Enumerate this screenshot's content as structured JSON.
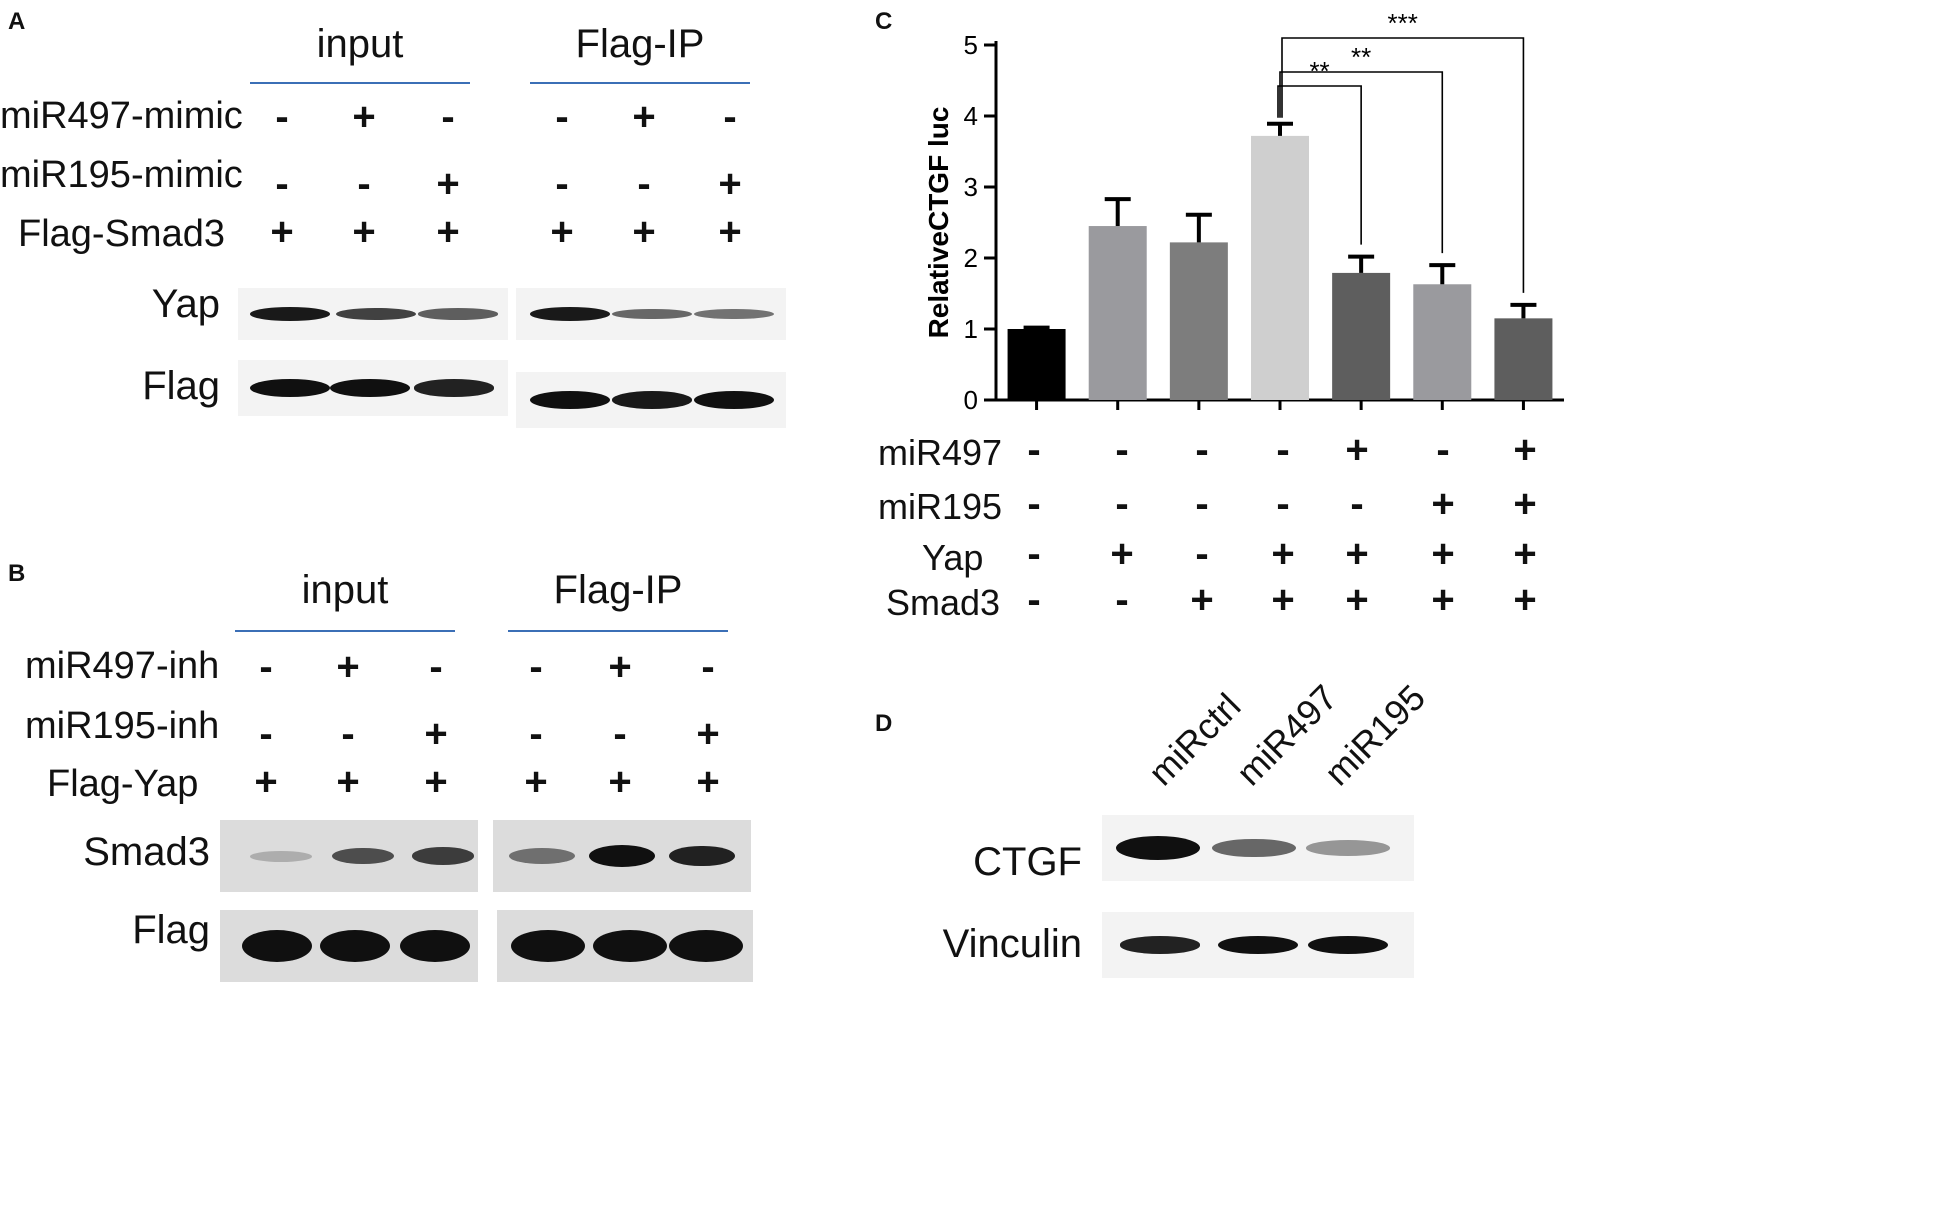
{
  "panels": {
    "A": {
      "letter": "A",
      "group_titles": [
        "input",
        "Flag-IP"
      ],
      "rows": [
        {
          "label": "miR497-mimic",
          "values": [
            "-",
            "+",
            "-",
            "-",
            "+",
            "-"
          ]
        },
        {
          "label": "miR195-mimic",
          "values": [
            "-",
            "-",
            "+",
            "-",
            "-",
            "+"
          ]
        },
        {
          "label": "Flag-Smad3",
          "values": [
            "+",
            "+",
            "+",
            "+",
            "+",
            "+"
          ]
        }
      ],
      "blots": [
        {
          "label": "Yap",
          "input_intensity": [
            0.95,
            0.75,
            0.6
          ],
          "ip_intensity": [
            0.95,
            0.55,
            0.5
          ]
        },
        {
          "label": "Flag",
          "input_intensity": [
            1.0,
            1.0,
            0.9
          ],
          "ip_intensity": [
            1.0,
            0.95,
            1.0
          ]
        }
      ]
    },
    "B": {
      "letter": "B",
      "group_titles": [
        "input",
        "Flag-IP"
      ],
      "rows": [
        {
          "label": "miR497-inh",
          "values": [
            "-",
            "+",
            "-",
            "-",
            "+",
            "-"
          ]
        },
        {
          "label": "miR195-inh",
          "values": [
            "-",
            "-",
            "+",
            "-",
            "-",
            "+"
          ]
        },
        {
          "label": "Flag-Yap",
          "values": [
            "+",
            "+",
            "+",
            "+",
            "+",
            "+"
          ]
        }
      ],
      "blots": [
        {
          "label": "Smad3",
          "input_intensity": [
            0.1,
            0.65,
            0.75
          ],
          "ip_intensity": [
            0.45,
            1.0,
            0.9
          ]
        },
        {
          "label": "Flag",
          "input_intensity": [
            1.0,
            1.0,
            1.0
          ],
          "ip_intensity": [
            1.0,
            1.0,
            1.0
          ]
        }
      ]
    },
    "C": {
      "letter": "C",
      "rows": [
        {
          "label": "miR497",
          "values": [
            "-",
            "-",
            "-",
            "-",
            "+",
            "-",
            "+"
          ]
        },
        {
          "label": "miR195",
          "values": [
            "-",
            "-",
            "-",
            "-",
            "-",
            "+",
            "+"
          ]
        },
        {
          "label": "Yap",
          "values": [
            "-",
            "+",
            "-",
            "+",
            "+",
            "+",
            "+"
          ]
        },
        {
          "label": "Smad3",
          "values": [
            "-",
            "-",
            "+",
            "+",
            "+",
            "+",
            "+"
          ]
        }
      ]
    },
    "D": {
      "letter": "D",
      "lanes": [
        "miRctrl",
        "miR497",
        "miR195"
      ],
      "blots": [
        {
          "label": "CTGF",
          "intensity": [
            1.0,
            0.55,
            0.3
          ]
        },
        {
          "label": "Vinculin",
          "intensity": [
            0.9,
            1.0,
            1.0
          ]
        }
      ]
    }
  },
  "chart_data": {
    "type": "bar",
    "title": "",
    "xlabel": "",
    "ylabel": "RelativeCTGF luc",
    "ylim": [
      0,
      5
    ],
    "yticks": [
      "0",
      "1",
      "2",
      "3",
      "4",
      "5"
    ],
    "values": [
      1.0,
      2.45,
      2.22,
      3.72,
      1.79,
      1.63,
      1.15
    ],
    "errors": [
      0.02,
      0.38,
      0.39,
      0.17,
      0.23,
      0.27,
      0.19
    ],
    "bar_colors": [
      "#000000",
      "#9a9a9e",
      "#7d7d7d",
      "#cfcfcf",
      "#5e5e5e",
      "#9a9a9e",
      "#5e5e5e"
    ],
    "significance": [
      {
        "from": 3,
        "to": 4,
        "label": "**"
      },
      {
        "from": 3,
        "to": 5,
        "label": "**"
      },
      {
        "from": 3,
        "to": 6,
        "label": "***"
      }
    ]
  }
}
